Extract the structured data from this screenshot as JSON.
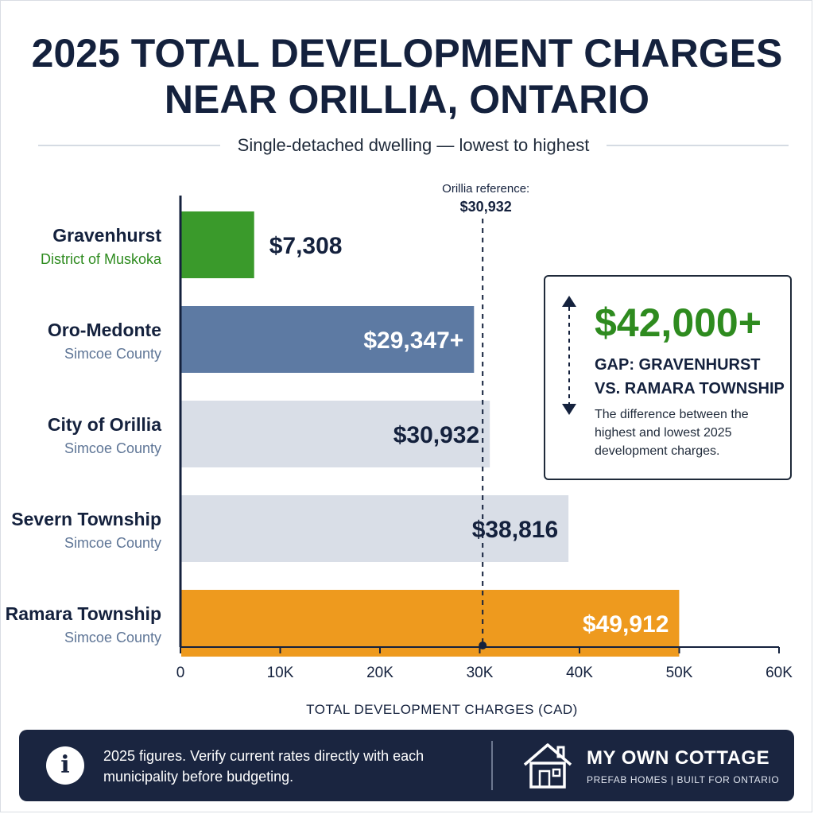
{
  "title": {
    "line1": "2025 TOTAL DEVELOPMENT CHARGES",
    "line2": "NEAR ORILLIA, ONTARIO"
  },
  "subtitle": "Single-detached dwelling — lowest to highest",
  "colors": {
    "green": "#3a9a2b",
    "green_text": "#2e8b1f",
    "blue": "#5d7aa3",
    "blue_text": "#5e7596",
    "light": "#d9dee7",
    "orange": "#ee9a1e",
    "navy": "#14213d"
  },
  "chart_data": {
    "type": "bar",
    "orientation": "horizontal",
    "categories": [
      "Gravenhurst",
      "Oro-Medonte",
      "City of Orillia",
      "Severn Township",
      "Ramara Township"
    ],
    "category_subtitles": [
      "District of Muskoka",
      "Simcoe County",
      "Simcoe County",
      "Simcoe County",
      "Simcoe County"
    ],
    "values": [
      7308,
      29347,
      30932,
      38816,
      49912
    ],
    "value_labels": [
      "$7,308",
      "$29,347+",
      "$30,932",
      "$38,816",
      "$49,912"
    ],
    "bar_colors": [
      "#3a9a2b",
      "#5d7aa3",
      "#d9dee7",
      "#d9dee7",
      "#ee9a1e"
    ],
    "label_colors": [
      "#14213d",
      "#ffffff",
      "#14213d",
      "#14213d",
      "#ffffff"
    ],
    "subtitle_colors": [
      "#2e8b1f",
      "#5e7596",
      "#5e7596",
      "#5e7596",
      "#5e7596"
    ],
    "label_position": [
      "outside",
      "inside",
      "inside",
      "inside",
      "inside"
    ],
    "xlim": [
      0,
      60000
    ],
    "xticks": [
      0,
      10000,
      20000,
      30000,
      40000,
      50000,
      60000
    ],
    "xtick_labels": [
      "0",
      "10K",
      "20K",
      "30K",
      "40K",
      "50K",
      "60K"
    ],
    "xlabel": "TOTAL DEVELOPMENT CHARGES (CAD)",
    "reference": {
      "label": "Orillia reference:",
      "value_label": "$30,932",
      "value": 30932
    }
  },
  "callout": {
    "value": "$42,000+",
    "heading_line1": "GAP: GRAVENHURST",
    "heading_line2": "VS. RAMARA TOWNSHIP",
    "body": "The difference between the highest and lowest 2025 development charges."
  },
  "footer": {
    "note": "2025 figures. Verify current rates directly with each municipality before budgeting.",
    "brand": "MY OWN COTTAGE",
    "tagline": "PREFAB HOMES | BUILT FOR ONTARIO",
    "info_icon": "info-icon",
    "brand_icon": "house-icon"
  }
}
